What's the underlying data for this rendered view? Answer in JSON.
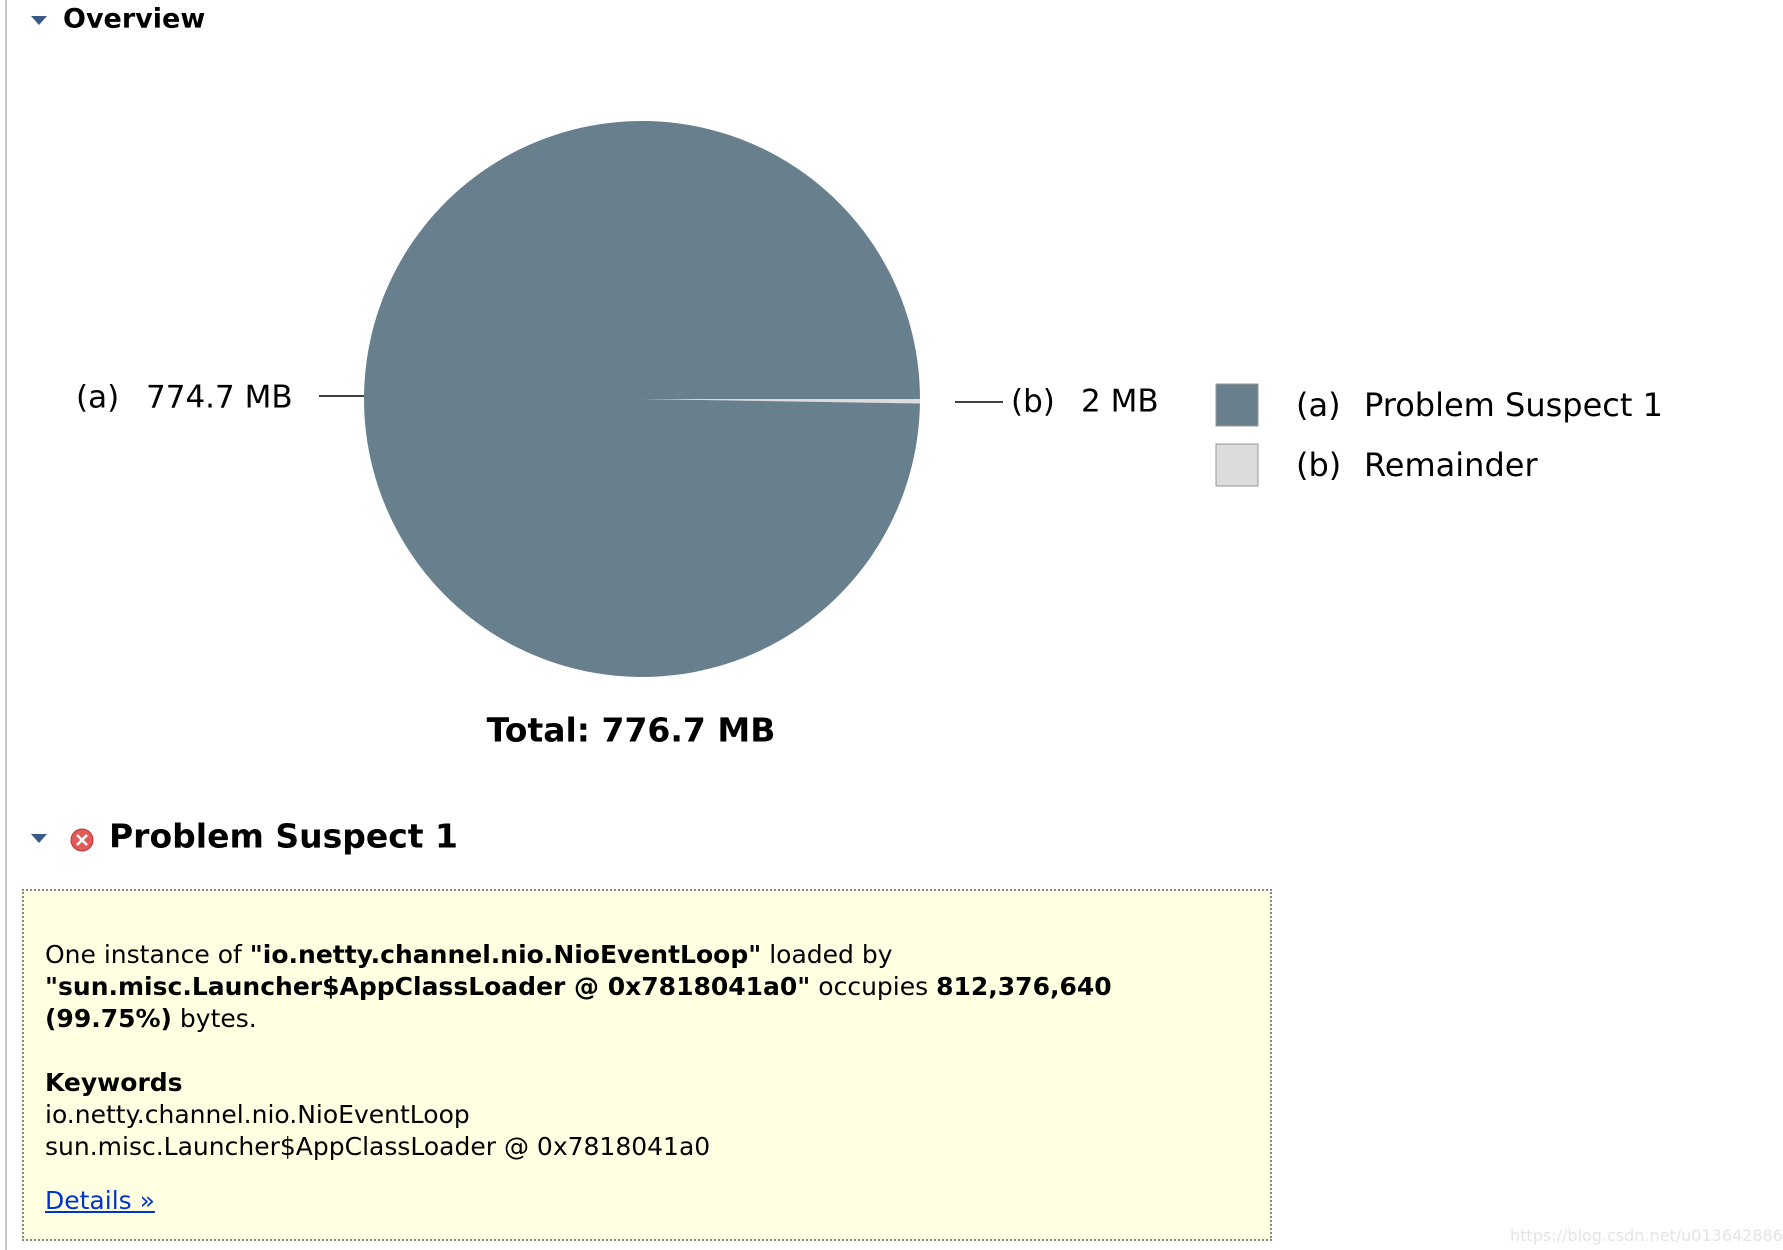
{
  "overview": {
    "title": "Overview"
  },
  "chart_data": {
    "type": "pie",
    "keys": [
      "(a)",
      "(b)"
    ],
    "categories": [
      "Problem Suspect 1",
      "Remainder"
    ],
    "values": [
      774.7,
      2
    ],
    "value_labels": [
      "774.7 MB",
      "2 MB"
    ],
    "colors": [
      "#687f8e",
      "#dcdcdc"
    ],
    "total_label": "Total: 776.7 MB"
  },
  "suspect": {
    "title": "Problem Suspect 1",
    "description": [
      "One instance of ",
      "\"io.netty.channel.nio.NioEventLoop\"",
      " loaded by ",
      "\"sun.misc.Launcher$AppClassLoader @ 0x7818041a0\"",
      " occupies ",
      "812,376,640 (99.75%)",
      " bytes."
    ],
    "keywords_title": "Keywords",
    "keywords": [
      "io.netty.channel.nio.NioEventLoop",
      "sun.misc.Launcher$AppClassLoader @ 0x7818041a0"
    ],
    "link": "Details »"
  },
  "watermark": "https://blog.csdn.net/u013642886"
}
